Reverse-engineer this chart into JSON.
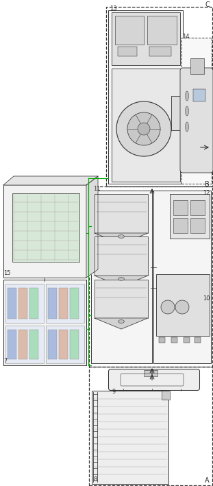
{
  "fw": 3.11,
  "fh": 7.09,
  "dpi": 100,
  "bg": "#ffffff",
  "dc": "#333333",
  "lc": "#777777",
  "gc": "#00aa00",
  "A": "A",
  "B": "B",
  "C": "C",
  "n7": "7",
  "n8": "8",
  "n9": "9",
  "n10": "10",
  "n11": "11",
  "n12": "12",
  "n13": "13",
  "n14": "14",
  "n15": "15"
}
